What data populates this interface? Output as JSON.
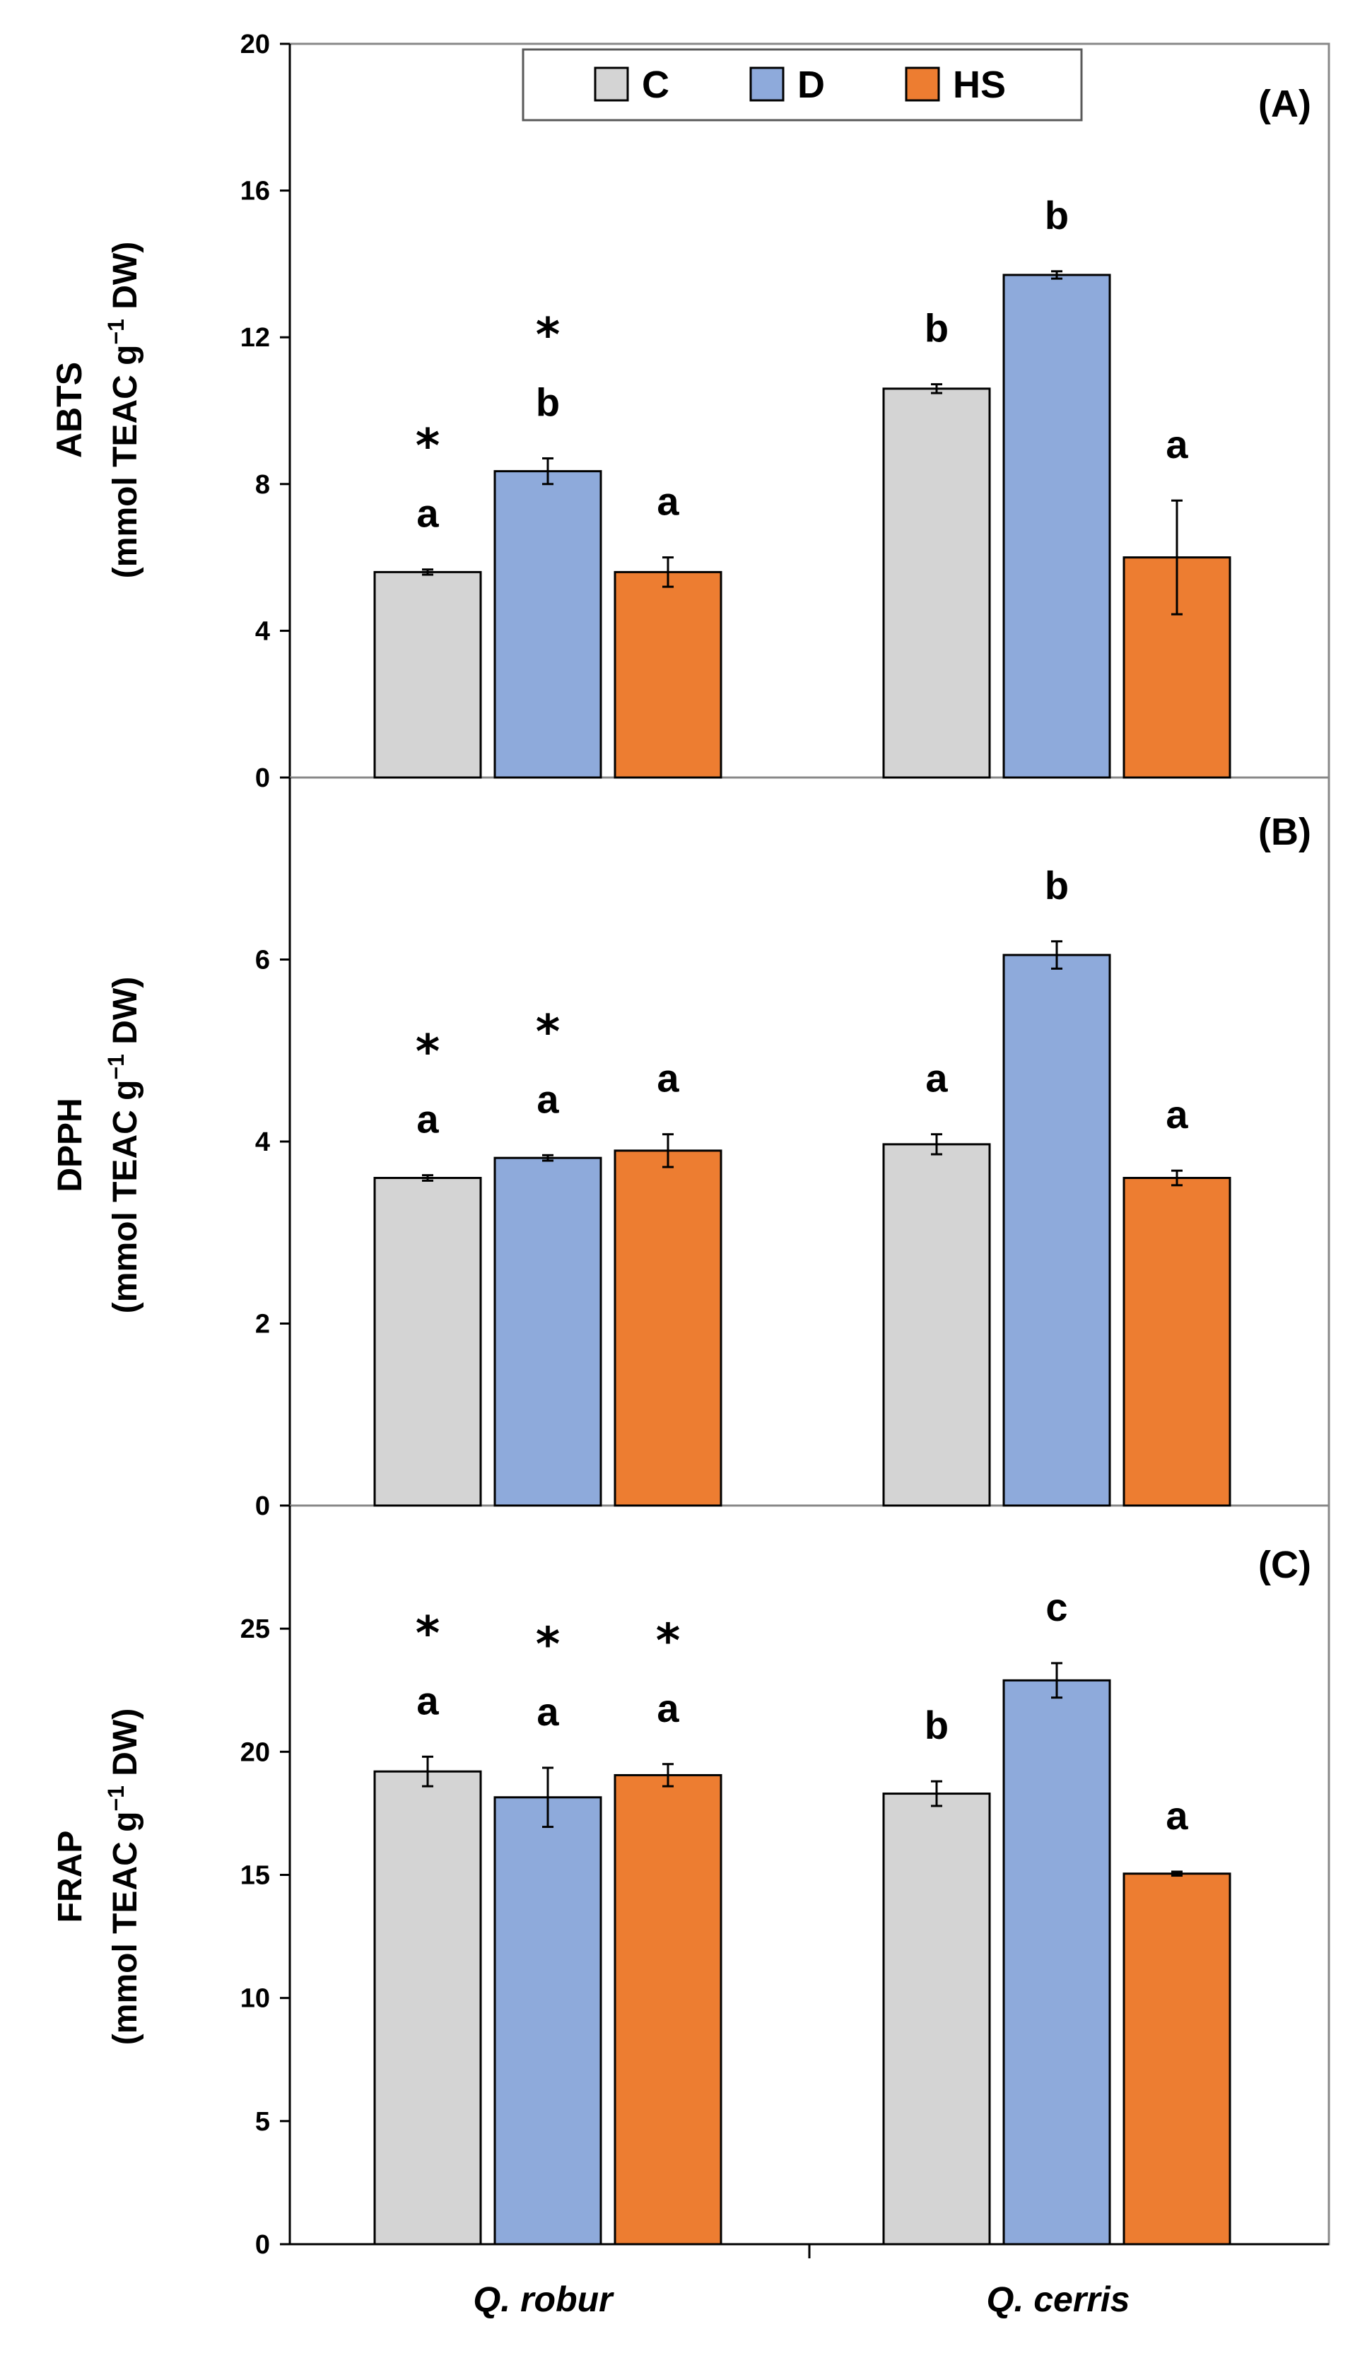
{
  "chart_data": {
    "type": "bar",
    "categories": [
      "Q. robur",
      "Q. cerris"
    ],
    "legend": {
      "placement": "top-center",
      "entries": [
        {
          "name": "C",
          "color": "#d4d4d4"
        },
        {
          "name": "D",
          "color": "#8eaadb"
        },
        {
          "name": "HS",
          "color": "#ed7d31"
        }
      ]
    },
    "panels": [
      {
        "label": "(A)",
        "ylabel_line1": "ABTS",
        "ylabel_line2_pre": "(mmol TEAC g",
        "ylabel_sup": "−1",
        "ylabel_line2_post": " DW)",
        "ylim": [
          0,
          20
        ],
        "ticks": [
          0,
          4,
          8,
          12,
          16,
          20
        ],
        "tick_labels": [
          "0",
          "4",
          "8",
          "12",
          "16",
          "20"
        ],
        "series": [
          {
            "name": "C",
            "values": [
              5.6,
              10.6
            ],
            "errors": [
              0.07,
              0.12
            ],
            "letters": [
              "a",
              "b"
            ],
            "stars": [
              "*",
              ""
            ]
          },
          {
            "name": "D",
            "values": [
              8.35,
              13.7
            ],
            "errors": [
              0.35,
              0.1
            ],
            "letters": [
              "b",
              "b"
            ],
            "stars": [
              "*",
              ""
            ]
          },
          {
            "name": "HS",
            "values": [
              5.6,
              6.0
            ],
            "errors": [
              0.4,
              1.55
            ],
            "letters": [
              "a",
              "a"
            ],
            "stars": [
              "",
              ""
            ]
          }
        ]
      },
      {
        "label": "(B)",
        "ylabel_line1": "DPPH",
        "ylabel_line2_pre": "(mmol TEAC g",
        "ylabel_sup": "−1",
        "ylabel_line2_post": " DW)",
        "ylim": [
          0,
          8
        ],
        "ticks": [
          0,
          2,
          4,
          6
        ],
        "tick_labels": [
          "0",
          "2",
          "4",
          "6"
        ],
        "series": [
          {
            "name": "C",
            "values": [
              3.6,
              3.97
            ],
            "errors": [
              0.03,
              0.11
            ],
            "letters": [
              "a",
              "a"
            ],
            "stars": [
              "*",
              ""
            ]
          },
          {
            "name": "D",
            "values": [
              3.82,
              6.05
            ],
            "errors": [
              0.03,
              0.15
            ],
            "letters": [
              "a",
              "b"
            ],
            "stars": [
              "*",
              ""
            ]
          },
          {
            "name": "HS",
            "values": [
              3.9,
              3.6
            ],
            "errors": [
              0.18,
              0.08
            ],
            "letters": [
              "a",
              "a"
            ],
            "stars": [
              "",
              ""
            ]
          }
        ]
      },
      {
        "label": "(C)",
        "ylabel_line1": "FRAP",
        "ylabel_line2_pre": "(mmol TEAC g",
        "ylabel_sup": "−1",
        "ylabel_line2_post": " DW)",
        "ylim": [
          0,
          30
        ],
        "ticks": [
          0,
          5,
          10,
          15,
          20,
          25
        ],
        "tick_labels": [
          "0",
          "5",
          "10",
          "15",
          "20",
          "25"
        ],
        "series": [
          {
            "name": "C",
            "values": [
              19.2,
              18.3
            ],
            "errors": [
              0.6,
              0.5
            ],
            "letters": [
              "a",
              "b"
            ],
            "stars": [
              "*",
              ""
            ]
          },
          {
            "name": "D",
            "values": [
              18.15,
              22.9
            ],
            "errors": [
              1.2,
              0.7
            ],
            "letters": [
              "a",
              "c"
            ],
            "stars": [
              "*",
              ""
            ]
          },
          {
            "name": "HS",
            "values": [
              19.05,
              15.05
            ],
            "errors": [
              0.45,
              0.08
            ],
            "letters": [
              "a",
              "a"
            ],
            "stars": [
              "*",
              ""
            ]
          }
        ]
      }
    ]
  }
}
